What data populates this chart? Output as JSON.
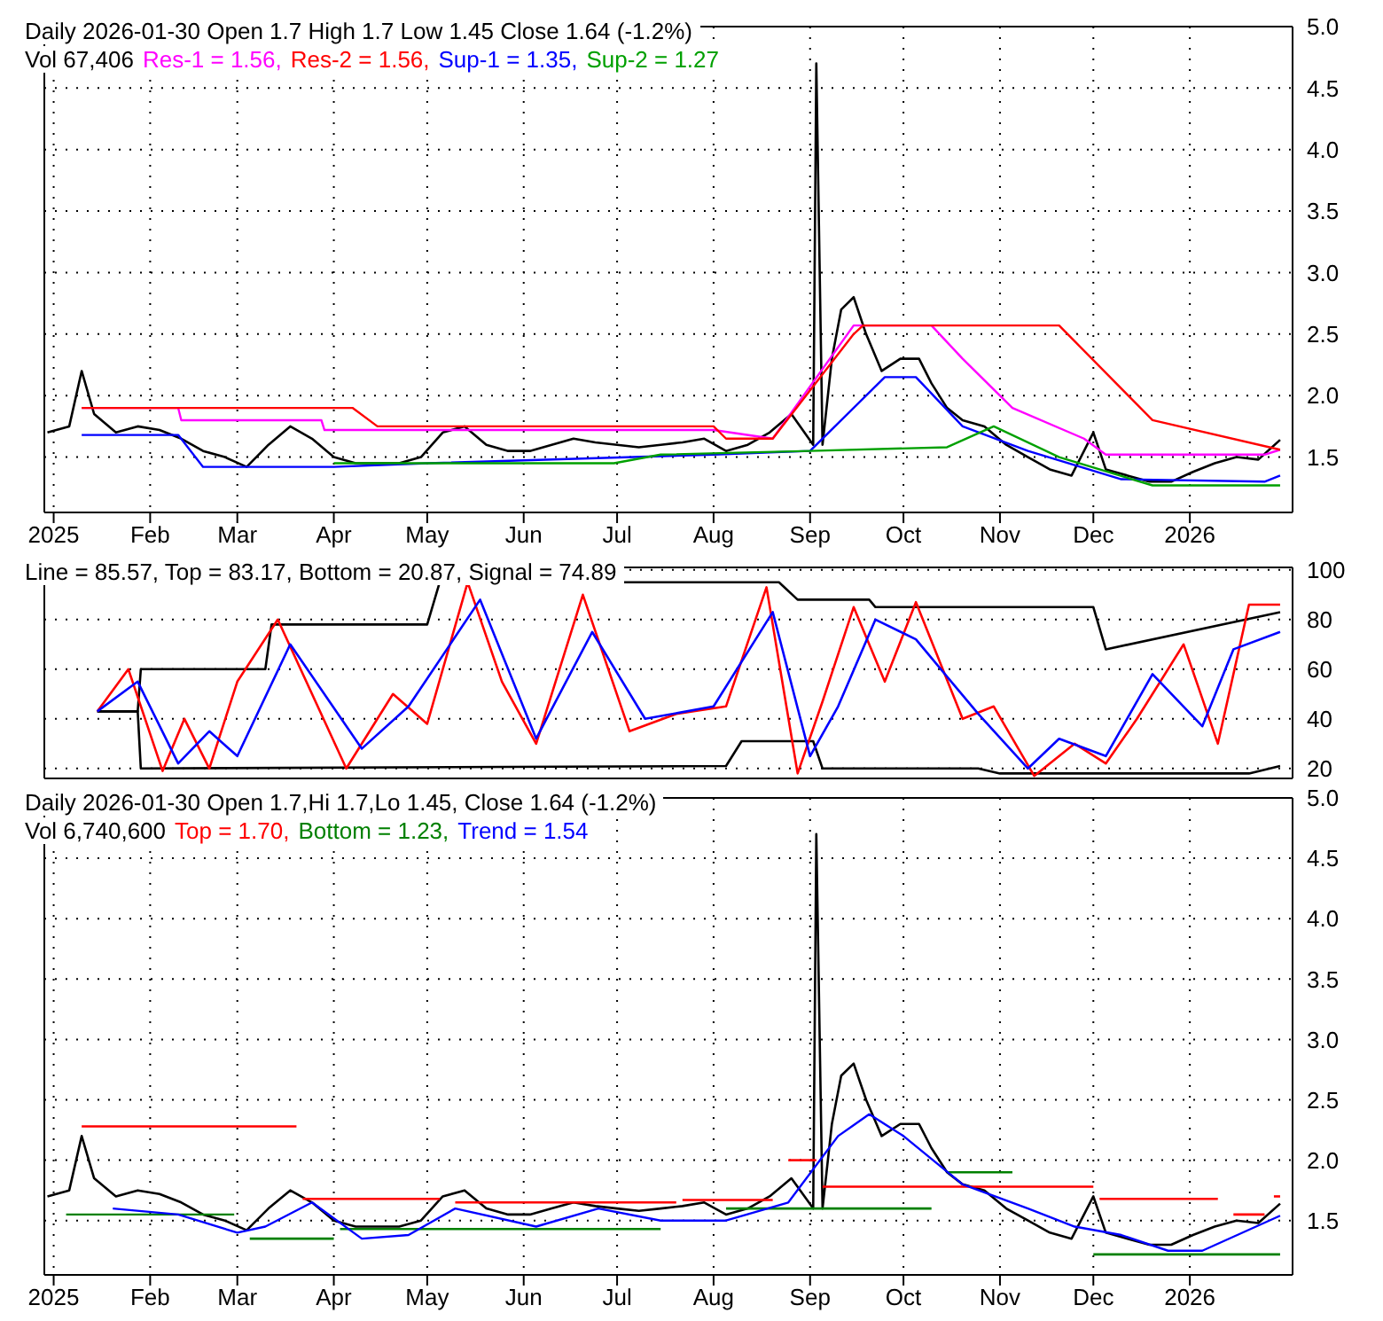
{
  "chart_data": [
    {
      "type": "line",
      "title": "Daily 2026-01-30 Open 1.7  High 1.7  Low 1.45  Close 1.64 (-1.2%)",
      "subtitle": "Vol 67,406",
      "legend": "top left",
      "grid": true,
      "marker": "none",
      "line_style": "solid",
      "xlim": [
        "2024-12-29",
        "2026-02-03"
      ],
      "ylim": [
        1.05,
        5.0
      ],
      "yticks": [
        {
          "value": 1.5,
          "label": "1.5"
        },
        {
          "value": 2.0,
          "label": "2.0"
        },
        {
          "value": 2.5,
          "label": "2.5"
        },
        {
          "value": 3.0,
          "label": "3.0"
        },
        {
          "value": 3.5,
          "label": "3.5"
        },
        {
          "value": 4.0,
          "label": "4.0"
        },
        {
          "value": 4.5,
          "label": "4.5"
        },
        {
          "value": 5.0,
          "label": "5.0"
        }
      ],
      "xticks": [
        {
          "value": "2025-01-01",
          "label": "2025"
        },
        {
          "value": "2025-02-01",
          "label": "Feb"
        },
        {
          "value": "2025-03-01",
          "label": "Mar"
        },
        {
          "value": "2025-04-01",
          "label": "Apr"
        },
        {
          "value": "2025-05-01",
          "label": "May"
        },
        {
          "value": "2025-06-01",
          "label": "Jun"
        },
        {
          "value": "2025-07-01",
          "label": "Jul"
        },
        {
          "value": "2025-08-01",
          "label": "Aug"
        },
        {
          "value": "2025-09-01",
          "label": "Sep"
        },
        {
          "value": "2025-10-01",
          "label": "Oct"
        },
        {
          "value": "2025-11-01",
          "label": "Nov"
        },
        {
          "value": "2025-12-01",
          "label": "Dec"
        },
        {
          "value": "2026-01-01",
          "label": "2026"
        }
      ],
      "series": [
        {
          "color": "#000000",
          "x": [
            "2024-12-30",
            "2025-01-06",
            "2025-01-10",
            "2025-01-14",
            "2025-01-21",
            "2025-01-28",
            "2025-02-04",
            "2025-02-11",
            "2025-02-18",
            "2025-02-25",
            "2025-03-04",
            "2025-03-11",
            "2025-03-18",
            "2025-03-25",
            "2025-04-01",
            "2025-04-08",
            "2025-04-15",
            "2025-04-22",
            "2025-04-29",
            "2025-05-06",
            "2025-05-13",
            "2025-05-20",
            "2025-05-27",
            "2025-06-03",
            "2025-06-10",
            "2025-06-17",
            "2025-06-24",
            "2025-07-01",
            "2025-07-08",
            "2025-07-15",
            "2025-07-22",
            "2025-07-29",
            "2025-08-05",
            "2025-08-12",
            "2025-08-19",
            "2025-08-26",
            "2025-09-02",
            "2025-09-03",
            "2025-09-05",
            "2025-09-08",
            "2025-09-11",
            "2025-09-15",
            "2025-09-19",
            "2025-09-24",
            "2025-09-30",
            "2025-10-06",
            "2025-10-10",
            "2025-10-15",
            "2025-10-20",
            "2025-10-27",
            "2025-11-03",
            "2025-11-10",
            "2025-11-17",
            "2025-11-24",
            "2025-12-01",
            "2025-12-05",
            "2025-12-12",
            "2025-12-19",
            "2025-12-26",
            "2026-01-02",
            "2026-01-09",
            "2026-01-16",
            "2026-01-23",
            "2026-01-30"
          ],
          "values": [
            1.7,
            1.75,
            2.2,
            1.85,
            1.7,
            1.75,
            1.72,
            1.65,
            1.55,
            1.5,
            1.42,
            1.6,
            1.75,
            1.65,
            1.5,
            1.45,
            1.45,
            1.45,
            1.5,
            1.7,
            1.75,
            1.6,
            1.55,
            1.55,
            1.6,
            1.65,
            1.62,
            1.6,
            1.58,
            1.6,
            1.62,
            1.65,
            1.55,
            1.6,
            1.7,
            1.85,
            1.6,
            4.7,
            1.6,
            2.3,
            2.7,
            2.8,
            2.5,
            2.2,
            2.3,
            2.3,
            2.1,
            1.9,
            1.8,
            1.75,
            1.6,
            1.5,
            1.4,
            1.35,
            1.7,
            1.4,
            1.35,
            1.3,
            1.3,
            1.38,
            1.45,
            1.5,
            1.48,
            1.64
          ]
        },
        {
          "name": "Res-1 = 1.56,",
          "color": "#ff00ff",
          "x": [
            "2025-01-10",
            "2025-02-10",
            "2025-02-11",
            "2025-03-28",
            "2025-03-29",
            "2025-08-01",
            "2025-08-20",
            "2025-09-15",
            "2025-10-10",
            "2025-10-20",
            "2025-11-05",
            "2025-11-28",
            "2025-12-05",
            "2026-01-25",
            "2026-01-30"
          ],
          "values": [
            1.9,
            1.9,
            1.8,
            1.8,
            1.72,
            1.72,
            1.65,
            2.57,
            2.57,
            2.3,
            1.9,
            1.65,
            1.52,
            1.52,
            1.56
          ]
        },
        {
          "name": "Res-2 = 1.56,",
          "color": "#ff0000",
          "x": [
            "2025-01-10",
            "2025-04-07",
            "2025-04-15",
            "2025-08-01",
            "2025-08-05",
            "2025-08-20",
            "2025-09-15",
            "2025-09-18",
            "2025-11-20",
            "2025-12-20",
            "2026-01-30"
          ],
          "values": [
            1.9,
            1.9,
            1.75,
            1.75,
            1.65,
            1.65,
            2.5,
            2.57,
            2.57,
            1.8,
            1.56
          ]
        },
        {
          "name": "Sup-1 = 1.35,",
          "color": "#0000ff",
          "x": [
            "2025-01-10",
            "2025-02-10",
            "2025-02-18",
            "2025-04-01",
            "2025-05-01",
            "2025-08-01",
            "2025-09-01",
            "2025-09-25",
            "2025-10-05",
            "2025-10-20",
            "2025-11-10",
            "2025-12-10",
            "2026-01-25",
            "2026-01-30"
          ],
          "values": [
            1.68,
            1.68,
            1.42,
            1.42,
            1.45,
            1.52,
            1.55,
            2.15,
            2.15,
            1.75,
            1.55,
            1.32,
            1.3,
            1.35
          ]
        },
        {
          "name": "Sup-2 = 1.27",
          "color": "#00a000",
          "x": [
            "2025-04-01",
            "2025-06-30",
            "2025-07-15",
            "2025-09-01",
            "2025-10-15",
            "2025-10-30",
            "2025-11-20",
            "2025-12-20",
            "2026-01-30"
          ],
          "values": [
            1.45,
            1.45,
            1.52,
            1.55,
            1.58,
            1.75,
            1.5,
            1.27,
            1.27
          ]
        }
      ]
    },
    {
      "type": "line",
      "title": "Line = 85.57, Top = 83.17, Bottom = 20.87, Signal = 74.89",
      "grid": true,
      "marker": "none",
      "line_style": "solid",
      "tick_labels": "y",
      "xlim": [
        "2024-12-29",
        "2026-02-03"
      ],
      "ylim": [
        16,
        101
      ],
      "yticks": [
        20,
        40,
        60,
        80,
        100
      ],
      "xticks": [
        {
          "value": "2025-01-01",
          "label": null
        },
        {
          "value": "2025-02-01",
          "label": null
        },
        {
          "value": "2025-03-01",
          "label": null
        },
        {
          "value": "2025-04-01",
          "label": null
        },
        {
          "value": "2025-05-01",
          "label": null
        },
        {
          "value": "2025-06-01",
          "label": null
        },
        {
          "value": "2025-07-01",
          "label": null
        },
        {
          "value": "2025-08-01",
          "label": null
        },
        {
          "value": "2025-09-01",
          "label": null
        },
        {
          "value": "2025-10-01",
          "label": null
        },
        {
          "value": "2025-11-01",
          "label": null
        },
        {
          "value": "2025-12-01",
          "label": null
        },
        {
          "value": "2026-01-01",
          "label": null
        }
      ],
      "series": [
        {
          "color": "#000000",
          "x": [
            "2025-01-15",
            "2025-01-28",
            "2025-01-29",
            "2025-03-10",
            "2025-03-12",
            "2025-05-01",
            "2025-05-05",
            "2025-08-22",
            "2025-08-28",
            "2025-09-20",
            "2025-09-22",
            "2025-12-01",
            "2025-12-05",
            "2026-01-30"
          ],
          "values": [
            43,
            43,
            60,
            60,
            78,
            78,
            95,
            95,
            88,
            88,
            85,
            85,
            68,
            83
          ]
        },
        {
          "color": "#000000",
          "x": [
            "2025-01-15",
            "2025-01-28",
            "2025-01-29",
            "2025-08-05",
            "2025-08-10",
            "2025-09-02",
            "2025-09-05",
            "2025-10-25",
            "2025-11-01",
            "2026-01-20",
            "2026-01-30"
          ],
          "values": [
            43,
            43,
            20,
            21,
            31,
            31,
            20,
            20,
            18,
            18,
            21
          ]
        },
        {
          "color": "#ff0000",
          "x": [
            "2025-01-15",
            "2025-01-25",
            "2025-02-05",
            "2025-02-12",
            "2025-02-20",
            "2025-03-01",
            "2025-03-14",
            "2025-04-05",
            "2025-04-20",
            "2025-05-01",
            "2025-05-14",
            "2025-05-25",
            "2025-06-05",
            "2025-06-20",
            "2025-07-05",
            "2025-07-20",
            "2025-08-05",
            "2025-08-18",
            "2025-08-28",
            "2025-09-05",
            "2025-09-15",
            "2025-09-25",
            "2025-10-05",
            "2025-10-20",
            "2025-10-30",
            "2025-11-12",
            "2025-11-25",
            "2025-12-05",
            "2025-12-15",
            "2025-12-30",
            "2026-01-10",
            "2026-01-20",
            "2026-01-30"
          ],
          "values": [
            43,
            60,
            19,
            40,
            20,
            55,
            80,
            20,
            50,
            38,
            95,
            55,
            30,
            90,
            35,
            42,
            45,
            93,
            18,
            47,
            85,
            55,
            87,
            40,
            45,
            17,
            30,
            22,
            40,
            70,
            30,
            86,
            86
          ]
        },
        {
          "color": "#0000ff",
          "x": [
            "2025-01-15",
            "2025-01-28",
            "2025-02-10",
            "2025-02-20",
            "2025-03-01",
            "2025-03-18",
            "2025-04-10",
            "2025-04-25",
            "2025-05-18",
            "2025-06-05",
            "2025-06-23",
            "2025-07-10",
            "2025-08-01",
            "2025-08-20",
            "2025-09-01",
            "2025-09-10",
            "2025-09-22",
            "2025-10-05",
            "2025-10-25",
            "2025-11-10",
            "2025-11-20",
            "2025-12-05",
            "2025-12-20",
            "2026-01-05",
            "2026-01-15",
            "2026-01-30"
          ],
          "values": [
            43,
            55,
            22,
            35,
            25,
            70,
            28,
            45,
            88,
            32,
            75,
            40,
            45,
            83,
            25,
            45,
            80,
            72,
            42,
            20,
            32,
            25,
            58,
            37,
            68,
            75
          ]
        }
      ]
    },
    {
      "type": "line",
      "title": "Daily 2026-01-30 Open 1.7,Hi 1.7,Lo 1.45, Close 1.64 (-1.2%)",
      "subtitle": "Vol 6,740,600",
      "legend": "top left",
      "grid": true,
      "marker": "none",
      "line_style": "solid",
      "xlim": [
        "2024-12-29",
        "2026-02-03"
      ],
      "ylim": [
        1.05,
        5.0
      ],
      "yticks": [
        {
          "value": 1.5,
          "label": "1.5"
        },
        {
          "value": 2.0,
          "label": "2.0"
        },
        {
          "value": 2.5,
          "label": "2.5"
        },
        {
          "value": 3.0,
          "label": "3.0"
        },
        {
          "value": 3.5,
          "label": "3.5"
        },
        {
          "value": 4.0,
          "label": "4.0"
        },
        {
          "value": 4.5,
          "label": "4.5"
        },
        {
          "value": 5.0,
          "label": "5.0"
        }
      ],
      "xticks": [
        {
          "value": "2025-01-01",
          "label": "2025"
        },
        {
          "value": "2025-02-01",
          "label": "Feb"
        },
        {
          "value": "2025-03-01",
          "label": "Mar"
        },
        {
          "value": "2025-04-01",
          "label": "Apr"
        },
        {
          "value": "2025-05-01",
          "label": "May"
        },
        {
          "value": "2025-06-01",
          "label": "Jun"
        },
        {
          "value": "2025-07-01",
          "label": "Jul"
        },
        {
          "value": "2025-08-01",
          "label": "Aug"
        },
        {
          "value": "2025-09-01",
          "label": "Sep"
        },
        {
          "value": "2025-10-01",
          "label": "Oct"
        },
        {
          "value": "2025-11-01",
          "label": "Nov"
        },
        {
          "value": "2025-12-01",
          "label": "Dec"
        },
        {
          "value": "2026-01-01",
          "label": "2026"
        }
      ],
      "series": [
        {
          "color": "#000000",
          "x": [
            "2024-12-30",
            "2025-01-06",
            "2025-01-10",
            "2025-01-14",
            "2025-01-21",
            "2025-01-28",
            "2025-02-04",
            "2025-02-11",
            "2025-02-18",
            "2025-02-25",
            "2025-03-04",
            "2025-03-11",
            "2025-03-18",
            "2025-03-25",
            "2025-04-01",
            "2025-04-08",
            "2025-04-15",
            "2025-04-22",
            "2025-04-29",
            "2025-05-06",
            "2025-05-13",
            "2025-05-20",
            "2025-05-27",
            "2025-06-03",
            "2025-06-10",
            "2025-06-17",
            "2025-06-24",
            "2025-07-01",
            "2025-07-08",
            "2025-07-15",
            "2025-07-22",
            "2025-07-29",
            "2025-08-05",
            "2025-08-12",
            "2025-08-19",
            "2025-08-26",
            "2025-09-02",
            "2025-09-03",
            "2025-09-05",
            "2025-09-08",
            "2025-09-11",
            "2025-09-15",
            "2025-09-19",
            "2025-09-24",
            "2025-09-30",
            "2025-10-06",
            "2025-10-10",
            "2025-10-15",
            "2025-10-20",
            "2025-10-27",
            "2025-11-03",
            "2025-11-10",
            "2025-11-17",
            "2025-11-24",
            "2025-12-01",
            "2025-12-05",
            "2025-12-12",
            "2025-12-19",
            "2025-12-26",
            "2026-01-02",
            "2026-01-09",
            "2026-01-16",
            "2026-01-23",
            "2026-01-30"
          ],
          "values": [
            1.7,
            1.75,
            2.2,
            1.85,
            1.7,
            1.75,
            1.72,
            1.65,
            1.55,
            1.5,
            1.42,
            1.6,
            1.75,
            1.65,
            1.5,
            1.45,
            1.45,
            1.45,
            1.5,
            1.7,
            1.75,
            1.6,
            1.55,
            1.55,
            1.6,
            1.65,
            1.62,
            1.6,
            1.58,
            1.6,
            1.62,
            1.65,
            1.55,
            1.6,
            1.7,
            1.85,
            1.6,
            4.7,
            1.6,
            2.3,
            2.7,
            2.8,
            2.5,
            2.2,
            2.3,
            2.3,
            2.1,
            1.9,
            1.8,
            1.75,
            1.6,
            1.5,
            1.4,
            1.35,
            1.7,
            1.4,
            1.35,
            1.3,
            1.3,
            1.38,
            1.45,
            1.5,
            1.48,
            1.64
          ]
        },
        {
          "name": "Top = 1.70,",
          "color": "#ff0000",
          "x": [
            "2025-01-10",
            "2025-03-20"
          ],
          "values": [
            2.28,
            2.28
          ]
        },
        {
          "color": "#ff0000",
          "x": [
            "2025-03-22",
            "2025-05-05"
          ],
          "values": [
            1.68,
            1.68
          ]
        },
        {
          "color": "#ff0000",
          "x": [
            "2025-05-10",
            "2025-07-20"
          ],
          "values": [
            1.65,
            1.65
          ]
        },
        {
          "color": "#ff0000",
          "x": [
            "2025-07-22",
            "2025-08-20"
          ],
          "values": [
            1.67,
            1.67
          ]
        },
        {
          "color": "#ff0000",
          "x": [
            "2025-08-25",
            "2025-09-03"
          ],
          "values": [
            2.0,
            2.0
          ]
        },
        {
          "color": "#ff0000",
          "x": [
            "2025-09-05",
            "2025-12-01"
          ],
          "values": [
            1.78,
            1.78
          ]
        },
        {
          "color": "#ff0000",
          "x": [
            "2025-12-03",
            "2026-01-10"
          ],
          "values": [
            1.68,
            1.68
          ]
        },
        {
          "color": "#ff0000",
          "x": [
            "2026-01-15",
            "2026-01-25"
          ],
          "values": [
            1.55,
            1.55
          ]
        },
        {
          "color": "#ff0000",
          "x": [
            "2026-01-28",
            "2026-01-30"
          ],
          "values": [
            1.7,
            1.7
          ]
        },
        {
          "name": "Bottom = 1.23,",
          "color": "#008000",
          "x": [
            "2025-01-05",
            "2025-02-28"
          ],
          "values": [
            1.55,
            1.55
          ]
        },
        {
          "color": "#008000",
          "x": [
            "2025-03-05",
            "2025-04-01"
          ],
          "values": [
            1.35,
            1.35
          ]
        },
        {
          "color": "#008000",
          "x": [
            "2025-04-03",
            "2025-07-15"
          ],
          "values": [
            1.43,
            1.43
          ]
        },
        {
          "color": "#008000",
          "x": [
            "2025-08-05",
            "2025-10-10"
          ],
          "values": [
            1.6,
            1.6
          ]
        },
        {
          "color": "#008000",
          "x": [
            "2025-10-15",
            "2025-11-05"
          ],
          "values": [
            1.9,
            1.9
          ]
        },
        {
          "color": "#008000",
          "x": [
            "2025-12-01",
            "2026-01-30"
          ],
          "values": [
            1.22,
            1.22
          ]
        },
        {
          "name": "Trend = 1.54",
          "color": "#0000ff",
          "x": [
            "2025-01-20",
            "2025-02-10",
            "2025-03-01",
            "2025-03-10",
            "2025-03-25",
            "2025-04-10",
            "2025-04-25",
            "2025-05-10",
            "2025-06-05",
            "2025-06-25",
            "2025-07-15",
            "2025-08-05",
            "2025-08-25",
            "2025-09-10",
            "2025-09-20",
            "2025-10-01",
            "2025-10-20",
            "2025-11-10",
            "2025-11-25",
            "2025-12-10",
            "2025-12-25",
            "2026-01-05",
            "2026-01-30"
          ],
          "values": [
            1.6,
            1.55,
            1.4,
            1.45,
            1.65,
            1.35,
            1.38,
            1.6,
            1.45,
            1.6,
            1.5,
            1.5,
            1.65,
            2.2,
            2.38,
            2.2,
            1.8,
            1.6,
            1.45,
            1.38,
            1.25,
            1.25,
            1.54
          ]
        }
      ]
    }
  ]
}
